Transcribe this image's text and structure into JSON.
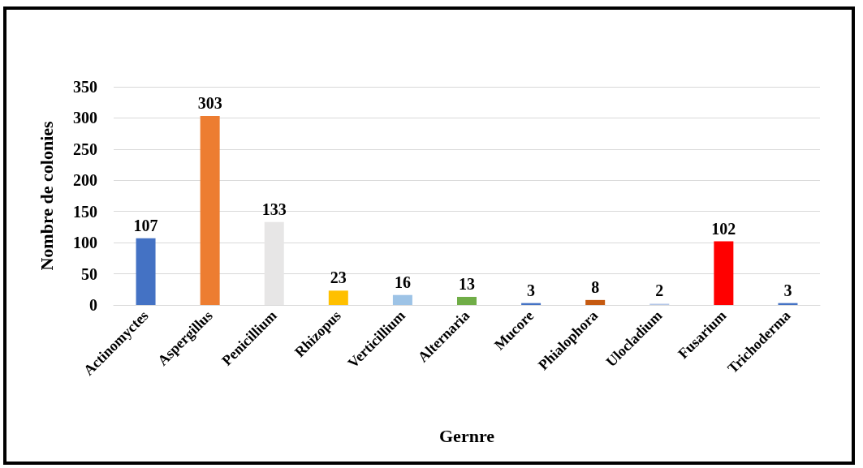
{
  "chart_data": {
    "type": "bar",
    "xlabel": "Gernre",
    "ylabel": "Nombre de colonies",
    "categories": [
      "Actinomyctes",
      "Aspergillus",
      "Penicillium",
      "Rhizopus",
      "Verticillium",
      "Alternaria",
      "Mucore",
      "Phialophora",
      "Ulocladium",
      "Fusarium",
      "Trichoderma"
    ],
    "values": [
      107,
      303,
      133,
      23,
      16,
      13,
      3,
      8,
      2,
      102,
      3
    ],
    "colors": [
      "#4472c4",
      "#ed7d31",
      "#e7e6e6",
      "#ffc000",
      "#9dc3e6",
      "#70ad47",
      "#4472c4",
      "#c55a11",
      "#b4c7e7",
      "#ff0000",
      "#4472c4"
    ],
    "ylim": [
      0,
      350
    ],
    "yticks": [
      0,
      50,
      100,
      150,
      200,
      250,
      300,
      350
    ],
    "grid": "y",
    "data_labels": true
  }
}
